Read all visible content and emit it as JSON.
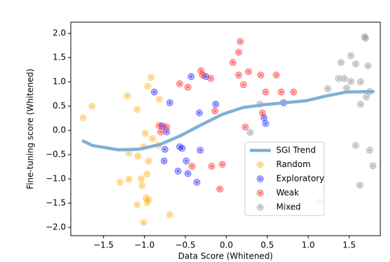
{
  "chart_data": {
    "type": "scatter",
    "xlabel": "Data Score (Whitened)",
    "ylabel": "Fine-tuning score (Whitened)",
    "xlim": [
      -1.9,
      1.88
    ],
    "ylim": [
      -2.17,
      2.23
    ],
    "xticks": [
      {
        "value": -1.5,
        "label": "−1.5"
      },
      {
        "value": -1.0,
        "label": "−1.0"
      },
      {
        "value": -0.5,
        "label": "−0.5"
      },
      {
        "value": 0.0,
        "label": "0.0"
      },
      0.5,
      {
        "value": 1.0,
        "label": "1.0"
      },
      1.5
    ],
    "yticks": [
      {
        "value": -2.0,
        "label": "−2.0"
      },
      {
        "value": -1.5,
        "label": "−1.5"
      },
      {
        "value": -1.0,
        "label": "−1.0"
      },
      {
        "value": -0.5,
        "label": "−0.5"
      },
      {
        "value": 0.0,
        "label": "0.0"
      },
      0.5,
      {
        "value": 1.0,
        "label": "1.0"
      },
      1.5,
      {
        "value": 2.0,
        "label": "2.0"
      }
    ],
    "trend": {
      "name": "SGI Trend",
      "color": "#7fb0d5",
      "x": [
        -1.76,
        -1.64,
        -1.32,
        -1.07,
        -0.81,
        -0.56,
        -0.31,
        -0.05,
        0.2,
        0.46,
        0.71,
        0.97,
        1.22,
        1.47,
        1.81
      ],
      "y": [
        -0.21,
        -0.31,
        -0.4,
        -0.39,
        -0.29,
        -0.11,
        0.11,
        0.33,
        0.47,
        0.53,
        0.57,
        0.61,
        0.71,
        0.79,
        0.8
      ]
    },
    "series": [
      {
        "name": "Random",
        "color": "#ffa500",
        "x": [
          -1.75,
          -1.64,
          -1.21,
          -1.09,
          -0.96,
          -0.92,
          -0.99,
          -1.01,
          -1.08,
          -1.19,
          -0.95,
          -0.97,
          -1.04,
          -1.03,
          -1.3,
          -1.19,
          -1.09,
          -0.98,
          -0.97,
          -0.95,
          -1.01,
          -0.69,
          -0.82,
          -0.9,
          -0.83
        ],
        "y": [
          0.26,
          0.5,
          0.71,
          0.43,
          0.91,
          1.09,
          -0.06,
          -0.34,
          -0.53,
          -0.47,
          -0.63,
          -0.9,
          -1.0,
          -1.14,
          -1.07,
          -1.01,
          -1.53,
          -1.39,
          -1.49,
          -1.43,
          -1.9,
          -1.74,
          0.64,
          -0.17,
          -0.31
        ]
      },
      {
        "name": "Exploratory",
        "color": "#0000ff",
        "x": [
          -0.88,
          -0.69,
          -0.43,
          -0.25,
          -0.33,
          -0.13,
          -0.78,
          -0.73,
          -0.75,
          -0.76,
          -0.57,
          -0.54,
          -0.49,
          -0.47,
          -0.59,
          -0.36,
          -0.32,
          0.46,
          0.48,
          0.7
        ],
        "y": [
          0.79,
          0.57,
          1.11,
          1.11,
          0.36,
          0.54,
          0.09,
          -0.03,
          -0.39,
          -0.63,
          -0.34,
          -0.37,
          -0.63,
          -0.89,
          -0.84,
          -1.07,
          -0.41,
          0.26,
          0.14,
          0.57
        ]
      },
      {
        "name": "Weak",
        "color": "#ff0000",
        "x": [
          0.17,
          0.15,
          0.08,
          0.15,
          0.21,
          0.27,
          0.42,
          0.61,
          0.48,
          0.67,
          0.82,
          -0.31,
          -0.29,
          -0.19,
          -0.57,
          -0.47,
          -0.14,
          -0.82,
          -0.8,
          -0.73,
          -0.42,
          -0.18,
          -0.05,
          -0.08,
          0.23,
          0.44
        ],
        "y": [
          1.83,
          1.61,
          1.4,
          1.14,
          0.94,
          1.21,
          1.14,
          1.14,
          0.79,
          0.79,
          0.79,
          1.23,
          1.14,
          1.07,
          0.96,
          0.89,
          0.4,
          0.1,
          -0.03,
          0.07,
          -0.74,
          -0.74,
          -0.7,
          -1.21,
          0.07,
          0.36
        ]
      },
      {
        "name": "Mixed",
        "color": "#808080",
        "x": [
          1.69,
          1.7,
          1.52,
          1.4,
          1.58,
          1.73,
          1.37,
          1.44,
          1.52,
          1.47,
          1.24,
          1.64,
          1.75,
          1.64,
          1.71,
          1.58,
          1.75,
          1.79,
          1.63,
          1.14,
          0.41,
          0.29
        ],
        "y": [
          1.93,
          1.9,
          1.54,
          1.4,
          1.37,
          1.33,
          1.07,
          1.07,
          1.01,
          0.87,
          0.86,
          1.0,
          0.8,
          0.54,
          0.69,
          -0.31,
          -0.41,
          -0.73,
          -1.13,
          -1.46,
          0.54,
          -0.04
        ]
      }
    ]
  }
}
